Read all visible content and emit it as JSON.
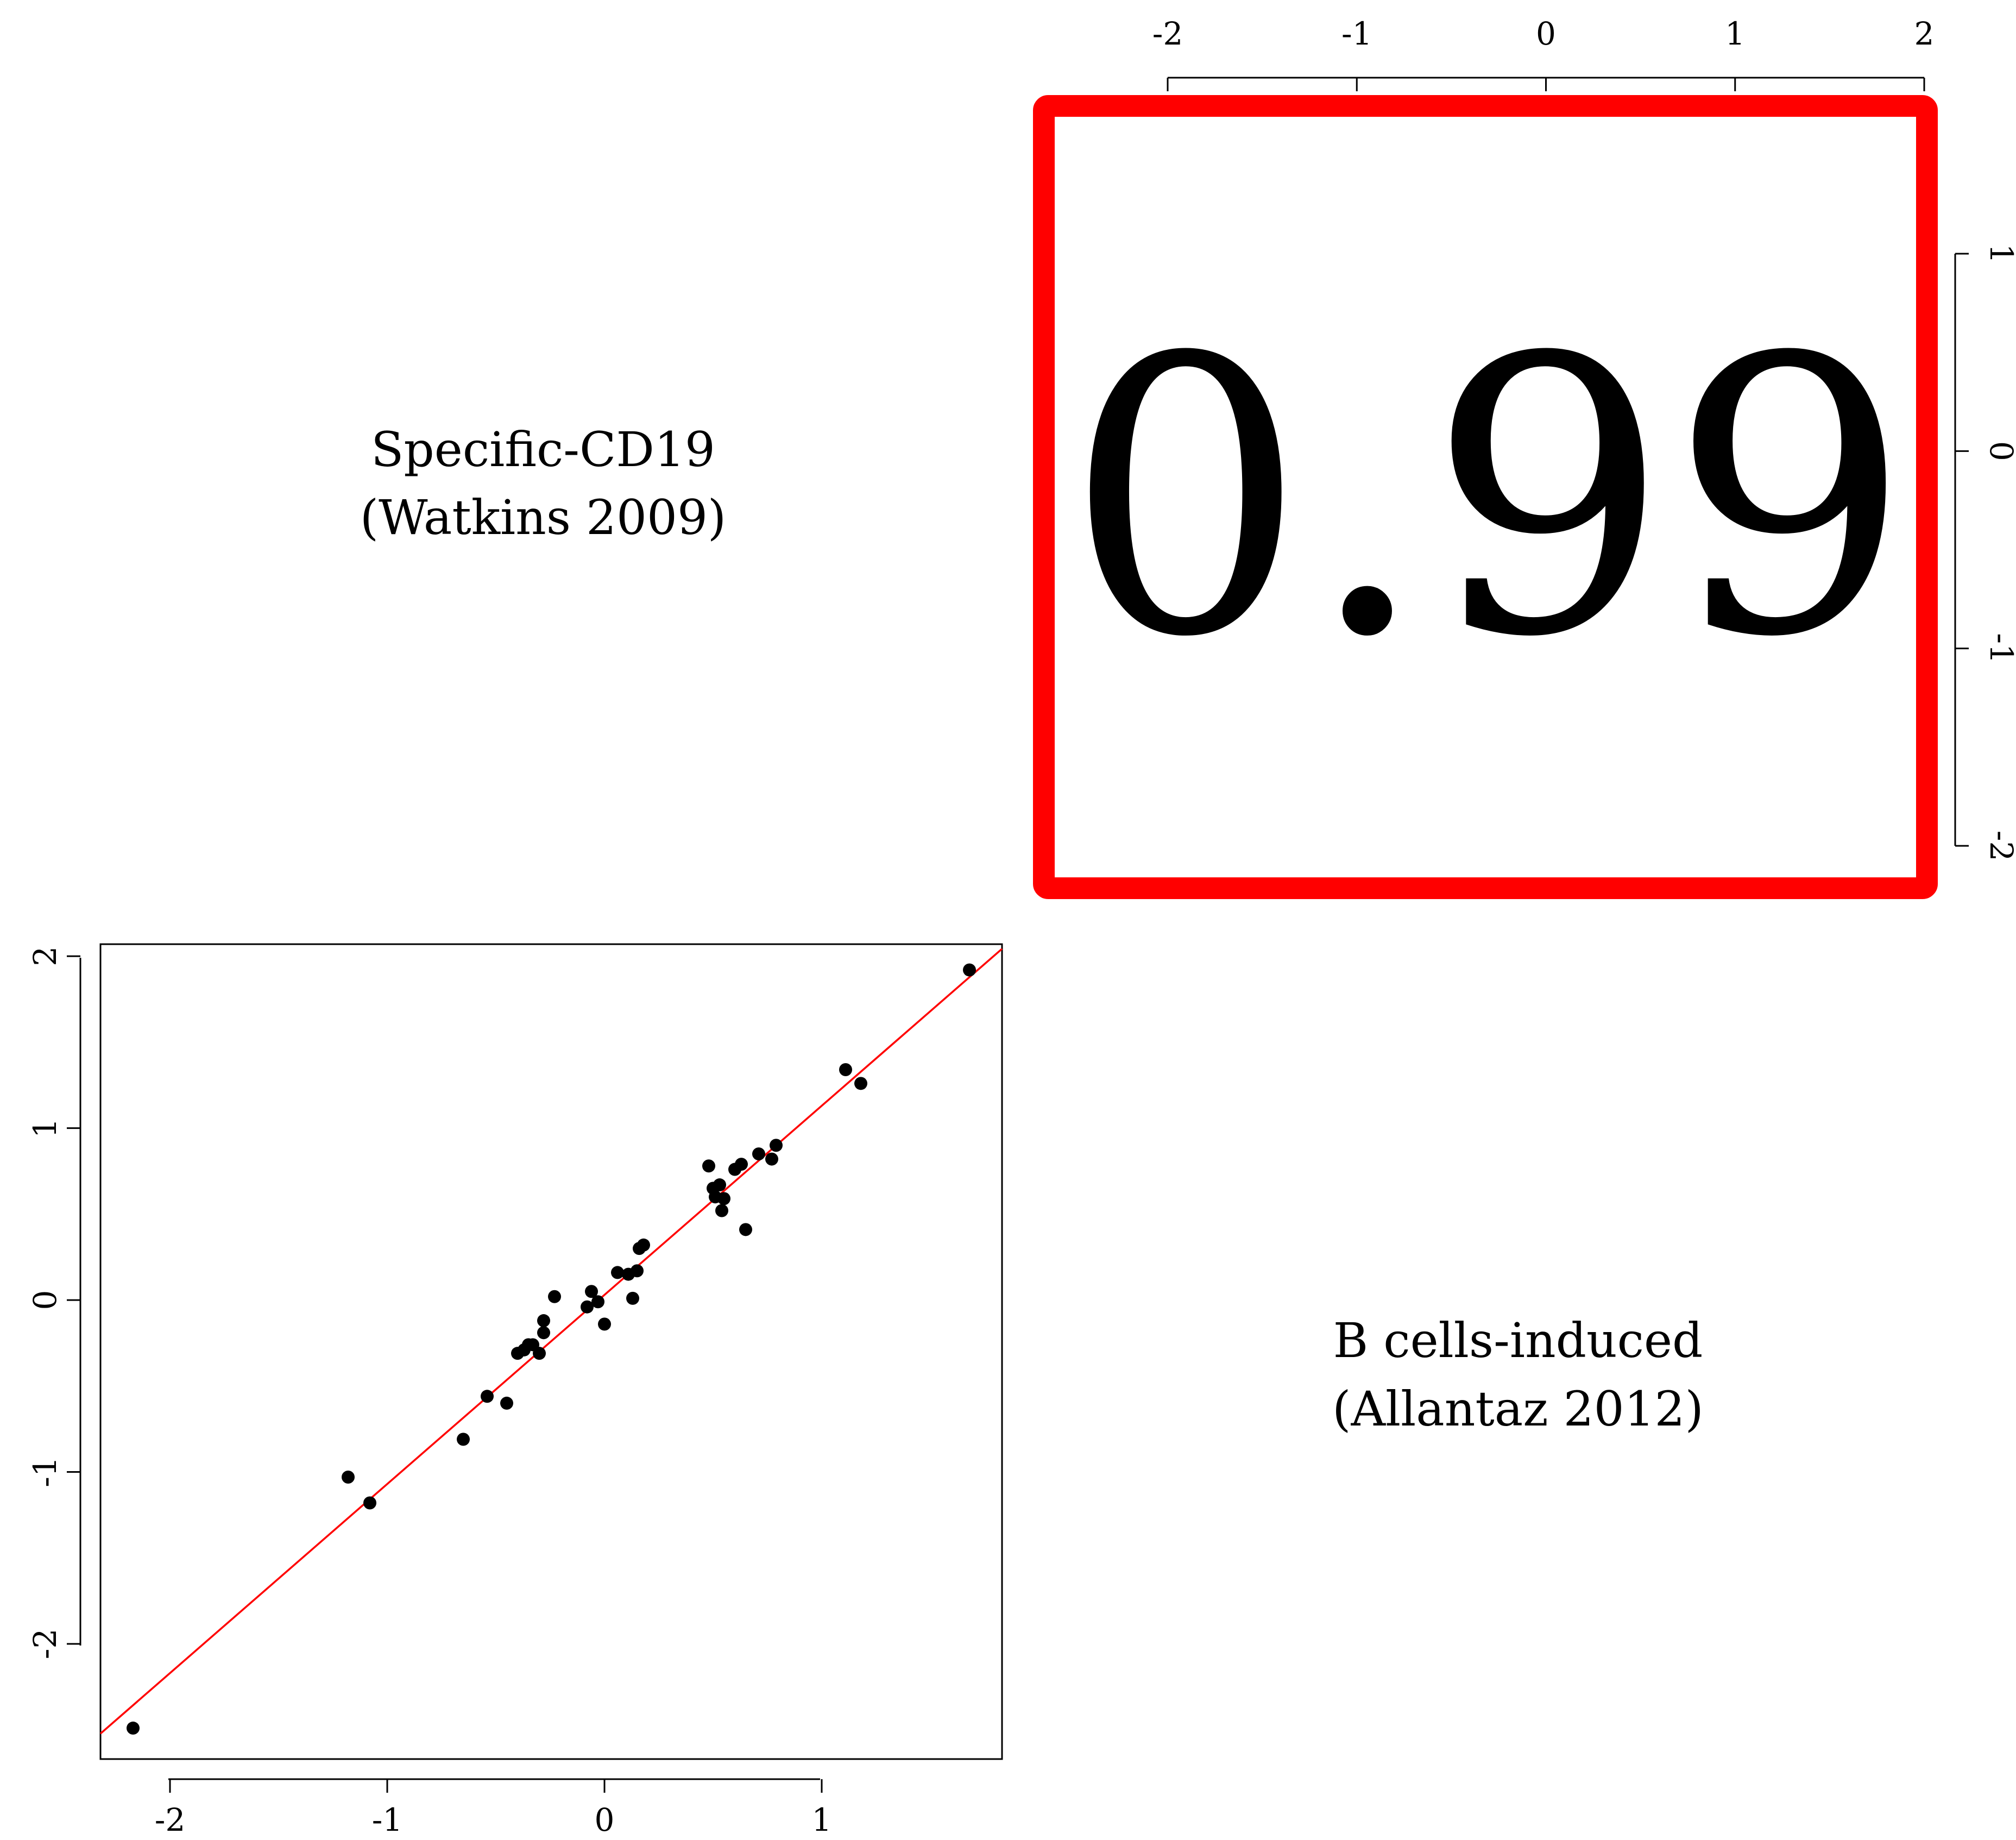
{
  "panels": {
    "diag_top_left": {
      "line1": "Specific-CD19",
      "line2": "(Watkins 2009)"
    },
    "diag_bottom_right": {
      "line1": "B cells-induced",
      "line2": "(Allantaz 2012)"
    },
    "correlation": {
      "value": "0.99",
      "box_color": "#ff0000"
    }
  },
  "axes": {
    "top_ticks": [
      "-2",
      "-1",
      "0",
      "1",
      "2"
    ],
    "right_ticks": [
      "1",
      "0",
      "-1",
      "-2"
    ],
    "left_ticks": [
      "2",
      "1",
      "0",
      "-1",
      "-2"
    ],
    "bottom_ticks": [
      "-2",
      "-1",
      "0",
      "1"
    ]
  },
  "chart_data": {
    "type": "scatter",
    "xlim": [
      -2.32,
      1.83
    ],
    "ylim": [
      -2.67,
      2.07
    ],
    "grid": false,
    "point_color": "#000000",
    "points": [
      [
        -2.17,
        -2.49
      ],
      [
        -1.18,
        -1.03
      ],
      [
        -1.08,
        -1.18
      ],
      [
        -0.65,
        -0.81
      ],
      [
        -0.54,
        -0.56
      ],
      [
        -0.45,
        -0.6
      ],
      [
        -0.4,
        -0.31
      ],
      [
        -0.37,
        -0.29
      ],
      [
        -0.35,
        -0.26
      ],
      [
        -0.33,
        -0.26
      ],
      [
        -0.3,
        -0.31
      ],
      [
        -0.28,
        -0.12
      ],
      [
        -0.28,
        -0.19
      ],
      [
        -0.23,
        0.02
      ],
      [
        -0.08,
        -0.04
      ],
      [
        -0.06,
        0.05
      ],
      [
        -0.03,
        -0.01
      ],
      [
        0.0,
        -0.14
      ],
      [
        0.06,
        0.16
      ],
      [
        0.11,
        0.15
      ],
      [
        0.13,
        0.01
      ],
      [
        0.15,
        0.17
      ],
      [
        0.16,
        0.3
      ],
      [
        0.18,
        0.32
      ],
      [
        0.48,
        0.78
      ],
      [
        0.5,
        0.65
      ],
      [
        0.51,
        0.6
      ],
      [
        0.53,
        0.67
      ],
      [
        0.54,
        0.52
      ],
      [
        0.55,
        0.59
      ],
      [
        0.6,
        0.76
      ],
      [
        0.63,
        0.79
      ],
      [
        0.65,
        0.41
      ],
      [
        0.71,
        0.85
      ],
      [
        0.77,
        0.82
      ],
      [
        0.79,
        0.9
      ],
      [
        1.11,
        1.34
      ],
      [
        1.18,
        1.26
      ],
      [
        1.68,
        1.92
      ]
    ],
    "fit_line": {
      "color": "#ff0000",
      "intercept": 0.03,
      "slope": 1.1
    }
  }
}
